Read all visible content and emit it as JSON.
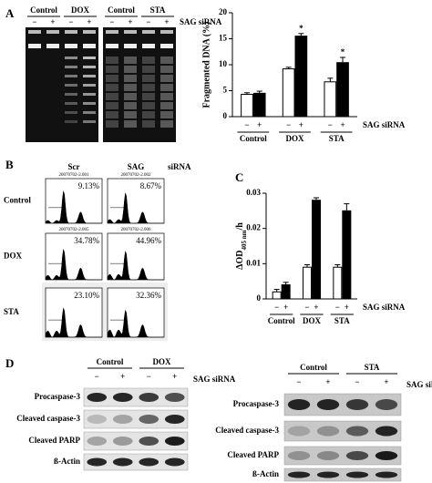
{
  "panel_labels": [
    "A",
    "B",
    "C",
    "D"
  ],
  "panel_a": {
    "gel_headers": [
      "Control",
      "DOX",
      "Control",
      "STA"
    ],
    "gel_signs": [
      "−",
      "+",
      "−",
      "+",
      "−",
      "+",
      "−",
      "+"
    ],
    "gel_treatment": "SAG siRNA"
  },
  "chart_data": [
    {
      "type": "bar",
      "ylabel": "Fragmented DNA (%)",
      "categories": [
        "Control",
        "DOX",
        "STA"
      ],
      "series": [
        {
          "name": "−",
          "color": "#ffffff",
          "values": [
            4.3,
            9.2,
            6.7
          ],
          "errors": [
            0.3,
            0.3,
            0.7
          ]
        },
        {
          "name": "+",
          "color": "#000000",
          "values": [
            4.5,
            15.5,
            10.4
          ],
          "errors": [
            0.4,
            0.5,
            1.0
          ],
          "significance": [
            null,
            "*",
            "*"
          ]
        }
      ],
      "treatment_label": "SAG siRNA",
      "ylim": [
        0,
        20
      ],
      "yticks": [
        0,
        5,
        10,
        15,
        20
      ]
    },
    {
      "type": "bar",
      "ylabel_main": "ΔOD",
      "ylabel_sub": "405 nm",
      "ylabel_end": "/h",
      "categories": [
        "Control",
        "DOX",
        "STA"
      ],
      "series": [
        {
          "name": "−",
          "color": "#ffffff",
          "values": [
            0.002,
            0.009,
            0.009
          ],
          "errors": [
            0.0007,
            0.0007,
            0.0007
          ]
        },
        {
          "name": "+",
          "color": "#000000",
          "values": [
            0.004,
            0.028,
            0.025
          ],
          "errors": [
            0.0007,
            0.0007,
            0.002
          ]
        }
      ],
      "treatment_label": "SAG siRNA",
      "ylim": [
        0,
        0.03
      ],
      "yticks": [
        0,
        0.01,
        0.02,
        0.03
      ]
    }
  ],
  "panel_b": {
    "columns": [
      "Scr",
      "SAG",
      "siRNA"
    ],
    "rows": [
      {
        "label": "Control",
        "files": [
          "20070702-2.001",
          "20070702-2.002"
        ],
        "percents": [
          "9.13%",
          "8.67%"
        ]
      },
      {
        "label": "DOX",
        "files": [
          "20070702-2.005",
          "20070702-2.006"
        ],
        "percents": [
          "34.78%",
          "44.96%"
        ]
      },
      {
        "label": "STA",
        "files": [],
        "percents": [
          "23.10%",
          "32.36%"
        ]
      }
    ]
  },
  "panel_d": {
    "left": {
      "headers": [
        "Control",
        "DOX"
      ],
      "signs": [
        "−",
        "+",
        "−",
        "+"
      ],
      "treatment": "SAG siRNA",
      "rows": [
        "Procaspase-3",
        "Cleaved caspase-3",
        "Cleaved PARP",
        "ß-Actin"
      ]
    },
    "right": {
      "headers": [
        "Control",
        "STA"
      ],
      "signs": [
        "−",
        "+",
        "−",
        "+"
      ],
      "treatment": "SAG siRNA",
      "rows": [
        "Procaspase-3",
        "Cleaved caspase-3",
        "Cleaved PARP",
        "ß-Actin"
      ]
    }
  }
}
